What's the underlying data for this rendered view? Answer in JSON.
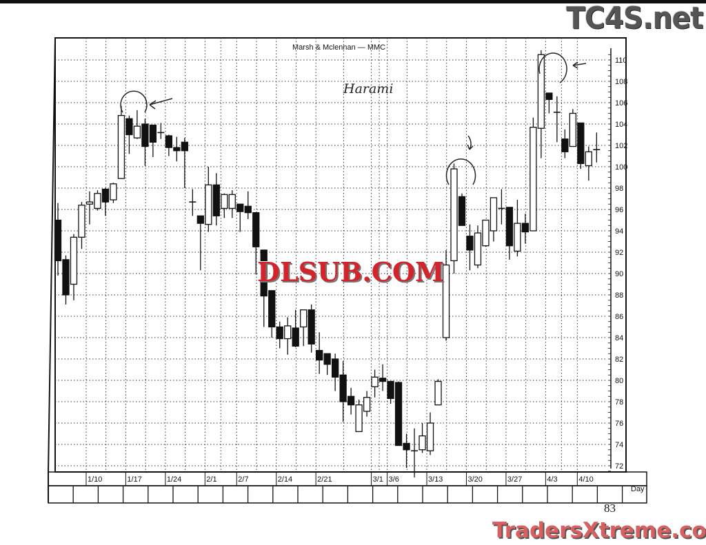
{
  "chart_data": {
    "type": "candlestick",
    "title": "Marsh & Mclennan — MMC",
    "xlabel": "Day",
    "ylabel": "",
    "ylim": [
      71,
      111
    ],
    "y_ticks": [
      72,
      74,
      76,
      78,
      80,
      82,
      84,
      86,
      88,
      90,
      92,
      94,
      96,
      98,
      100,
      102,
      104,
      106,
      108,
      110
    ],
    "grid": true,
    "x_ticks": [
      {
        "label": "1/10",
        "index": 4
      },
      {
        "label": "1/17",
        "index": 9
      },
      {
        "label": "1/24",
        "index": 14
      },
      {
        "label": "2/1",
        "index": 19
      },
      {
        "label": "2/7",
        "index": 23
      },
      {
        "label": "2/14",
        "index": 28
      },
      {
        "label": "2/21",
        "index": 33
      },
      {
        "label": "3/1",
        "index": 40
      },
      {
        "label": "3/6",
        "index": 42
      },
      {
        "label": "3/13",
        "index": 47
      },
      {
        "label": "3/20",
        "index": 52
      },
      {
        "label": "3/27",
        "index": 57
      },
      {
        "label": "4/3",
        "index": 62
      },
      {
        "label": "4/10",
        "index": 66
      }
    ],
    "ohlc": [
      [
        95.0,
        96.6,
        89.8,
        91.2
      ],
      [
        91.3,
        91.7,
        87.1,
        88.0
      ],
      [
        89.0,
        93.7,
        87.5,
        93.4
      ],
      [
        93.4,
        96.7,
        92.3,
        96.4
      ],
      [
        96.5,
        97.7,
        94.6,
        96.7
      ],
      [
        96.1,
        97.8,
        95.9,
        97.5
      ],
      [
        97.9,
        98.0,
        95.4,
        96.7
      ],
      [
        96.9,
        98.5,
        96.6,
        98.4
      ],
      [
        98.9,
        105.7,
        98.9,
        104.8
      ],
      [
        104.5,
        104.8,
        101.2,
        103.0
      ],
      [
        102.7,
        105.3,
        102.6,
        103.8
      ],
      [
        104.0,
        104.5,
        100.1,
        101.9
      ],
      [
        103.9,
        103.9,
        100.9,
        102.3
      ],
      [
        103.2,
        104.1,
        102.6,
        103.2
      ],
      [
        102.9,
        103.0,
        101.0,
        101.8
      ],
      [
        101.8,
        102.8,
        100.5,
        101.5
      ],
      [
        102.3,
        102.7,
        98.0,
        101.5
      ],
      [
        96.7,
        97.9,
        95.4,
        96.7
      ],
      [
        95.4,
        95.4,
        90.3,
        94.7
      ],
      [
        94.6,
        100.0,
        93.9,
        98.3
      ],
      [
        98.3,
        99.4,
        94.5,
        95.4
      ],
      [
        96.1,
        97.5,
        95.2,
        97.4
      ],
      [
        96.1,
        97.8,
        95.2,
        97.4
      ],
      [
        96.5,
        96.5,
        93.9,
        95.8
      ],
      [
        96.3,
        97.7,
        95.1,
        95.7
      ],
      [
        95.7,
        95.7,
        89.9,
        92.5
      ],
      [
        92.2,
        92.2,
        85.0,
        87.9
      ],
      [
        88.4,
        88.4,
        84.0,
        85.0
      ],
      [
        85.0,
        85.5,
        83.0,
        83.9
      ],
      [
        83.9,
        85.9,
        82.4,
        85.1
      ],
      [
        84.9,
        86.6,
        83.1,
        83.2
      ],
      [
        85.0,
        86.6,
        83.2,
        86.6
      ],
      [
        86.6,
        87.1,
        82.6,
        83.4
      ],
      [
        82.8,
        84.5,
        80.6,
        81.9
      ],
      [
        82.5,
        82.5,
        80.5,
        81.5
      ],
      [
        82.0,
        82.5,
        79.0,
        80.3
      ],
      [
        80.5,
        81.8,
        76.1,
        78.0
      ],
      [
        78.5,
        79.3,
        76.8,
        77.7
      ],
      [
        75.2,
        78.2,
        75.2,
        77.7
      ],
      [
        77.1,
        79.0,
        76.6,
        78.4
      ],
      [
        79.4,
        81.0,
        78.4,
        80.3
      ],
      [
        80.2,
        81.5,
        79.0,
        79.9
      ],
      [
        79.9,
        79.9,
        77.8,
        78.3
      ],
      [
        79.8,
        79.9,
        73.9,
        73.9
      ],
      [
        74.1,
        75.0,
        71.8,
        73.5
      ],
      [
        73.4,
        75.5,
        70.9,
        73.4
      ],
      [
        73.5,
        76.0,
        73.2,
        74.8
      ],
      [
        73.4,
        77.0,
        73.0,
        76.0
      ],
      [
        77.7,
        80.1,
        77.7,
        79.9
      ],
      [
        84.0,
        92.2,
        83.7,
        90.8
      ],
      [
        91.2,
        100.3,
        90.0,
        99.8
      ],
      [
        97.2,
        97.5,
        94.5,
        94.5
      ],
      [
        93.5,
        94.6,
        90.3,
        92.2
      ],
      [
        90.8,
        94.5,
        90.5,
        93.8
      ],
      [
        92.6,
        95.0,
        92.5,
        95.0
      ],
      [
        94.0,
        97.1,
        93.0,
        97.1
      ],
      [
        96.1,
        97.9,
        94.6,
        96.1
      ],
      [
        96.2,
        96.2,
        91.3,
        92.6
      ],
      [
        92.1,
        96.9,
        91.6,
        94.7
      ],
      [
        94.7,
        95.6,
        92.8,
        93.9
      ],
      [
        94.0,
        104.6,
        94.0,
        103.7
      ],
      [
        103.6,
        110.9,
        100.8,
        110.5
      ],
      [
        106.9,
        106.9,
        105.0,
        106.3
      ],
      [
        105.1,
        106.6,
        102.3,
        105.1
      ],
      [
        102.6,
        103.5,
        100.8,
        101.4
      ],
      [
        101.9,
        105.4,
        101.9,
        105.0
      ],
      [
        104.1,
        104.1,
        99.8,
        100.3
      ],
      [
        100.1,
        101.9,
        98.7,
        101.4
      ],
      [
        101.6,
        103.2,
        100.4,
        101.6
      ]
    ],
    "ohlc_fields": [
      "open",
      "high",
      "low",
      "close"
    ],
    "annotations": [
      {
        "text": "Harami"
      }
    ],
    "highlighted_indices": [
      8,
      9,
      50,
      51,
      61,
      62
    ]
  },
  "page": {
    "page_number": "83"
  },
  "watermarks": {
    "top_right": "TC4S.net",
    "center": "DLSUB.COM",
    "bottom": "TradersXtreme.com"
  },
  "colors": {
    "ink": "#111111",
    "watermark_red": "#d3242c",
    "paper": "#ffffff"
  }
}
